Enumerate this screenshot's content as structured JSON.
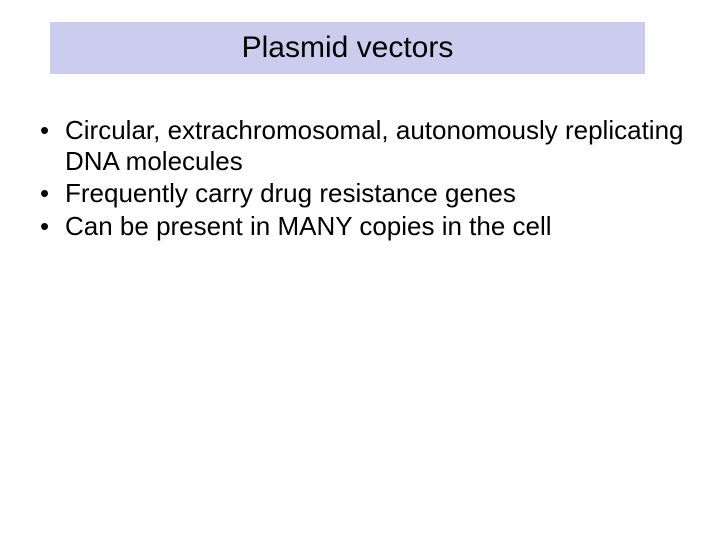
{
  "slide": {
    "title": "Plasmid vectors",
    "title_bg_color": "#ccccee",
    "title_fontsize": 30,
    "body_fontsize": 26,
    "text_color": "#000000",
    "background_color": "#ffffff",
    "bullets": [
      "Circular, extrachromosomal, autonomously replicating DNA molecules",
      "Frequently carry drug resistance genes",
      "Can be present in MANY copies in the cell"
    ]
  }
}
